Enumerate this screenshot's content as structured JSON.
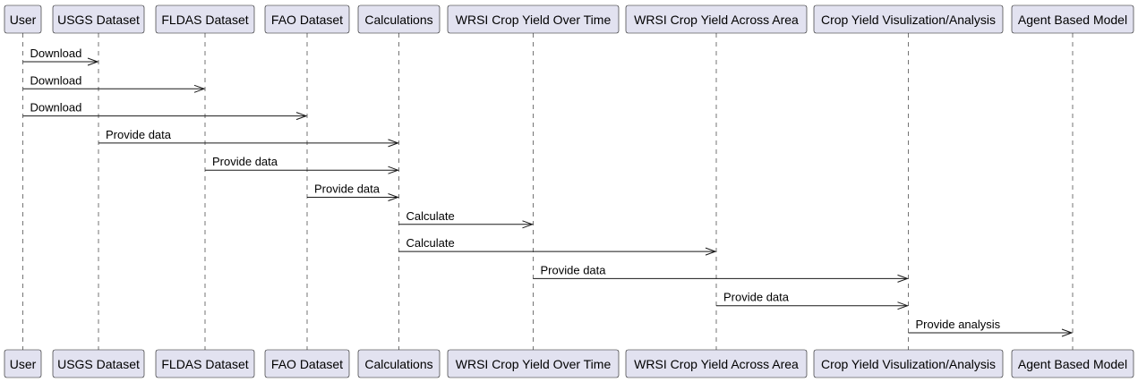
{
  "diagram": {
    "participants": [
      "User",
      "USGS Dataset",
      "FLDAS Dataset",
      "FAO Dataset",
      "Calculations",
      "WRSI Crop Yield Over Time",
      "WRSI Crop Yield Across Area",
      "Crop Yield Visulization/Analysis",
      "Agent Based Model"
    ],
    "messages": [
      {
        "from": 0,
        "to": 1,
        "label": "Download"
      },
      {
        "from": 0,
        "to": 2,
        "label": "Download"
      },
      {
        "from": 0,
        "to": 3,
        "label": "Download"
      },
      {
        "from": 1,
        "to": 4,
        "label": "Provide data"
      },
      {
        "from": 2,
        "to": 4,
        "label": "Provide data"
      },
      {
        "from": 3,
        "to": 4,
        "label": "Provide data"
      },
      {
        "from": 4,
        "to": 5,
        "label": "Calculate"
      },
      {
        "from": 4,
        "to": 6,
        "label": "Calculate"
      },
      {
        "from": 5,
        "to": 7,
        "label": "Provide data"
      },
      {
        "from": 6,
        "to": 7,
        "label": "Provide data"
      },
      {
        "from": 7,
        "to": 8,
        "label": "Provide analysis"
      }
    ]
  }
}
